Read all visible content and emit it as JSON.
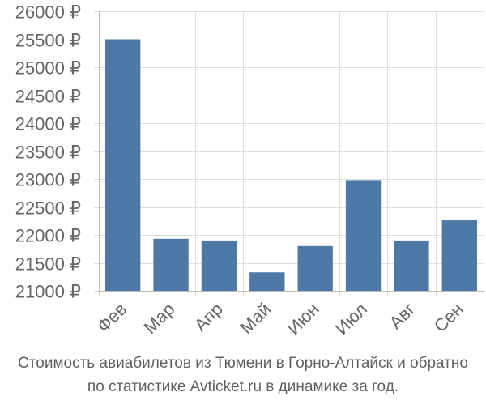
{
  "chart_data": {
    "type": "bar",
    "categories": [
      "Фев",
      "Мар",
      "Апр",
      "Май",
      "Июн",
      "Июл",
      "Авг",
      "Сен"
    ],
    "values": [
      25500,
      21930,
      21900,
      21330,
      21800,
      22980,
      21900,
      22260
    ],
    "ylim": [
      21000,
      26000
    ],
    "yticks": [
      21000,
      21500,
      22000,
      22500,
      23000,
      23500,
      24000,
      24500,
      25000,
      25500,
      26000
    ],
    "ytick_labels": [
      "21000 ₽",
      "21500 ₽",
      "22000 ₽",
      "22500 ₽",
      "23000 ₽",
      "23500 ₽",
      "24000 ₽",
      "24500 ₽",
      "25000 ₽",
      "25500 ₽",
      "26000 ₽"
    ],
    "bar_color": "#4e79a7",
    "grid": true
  },
  "caption": {
    "line1": "Стоимость авиабилетов из Тюмени в Горно-Алтайск и обратно",
    "line2": "по статистике Avticket.ru в динамике за год."
  }
}
